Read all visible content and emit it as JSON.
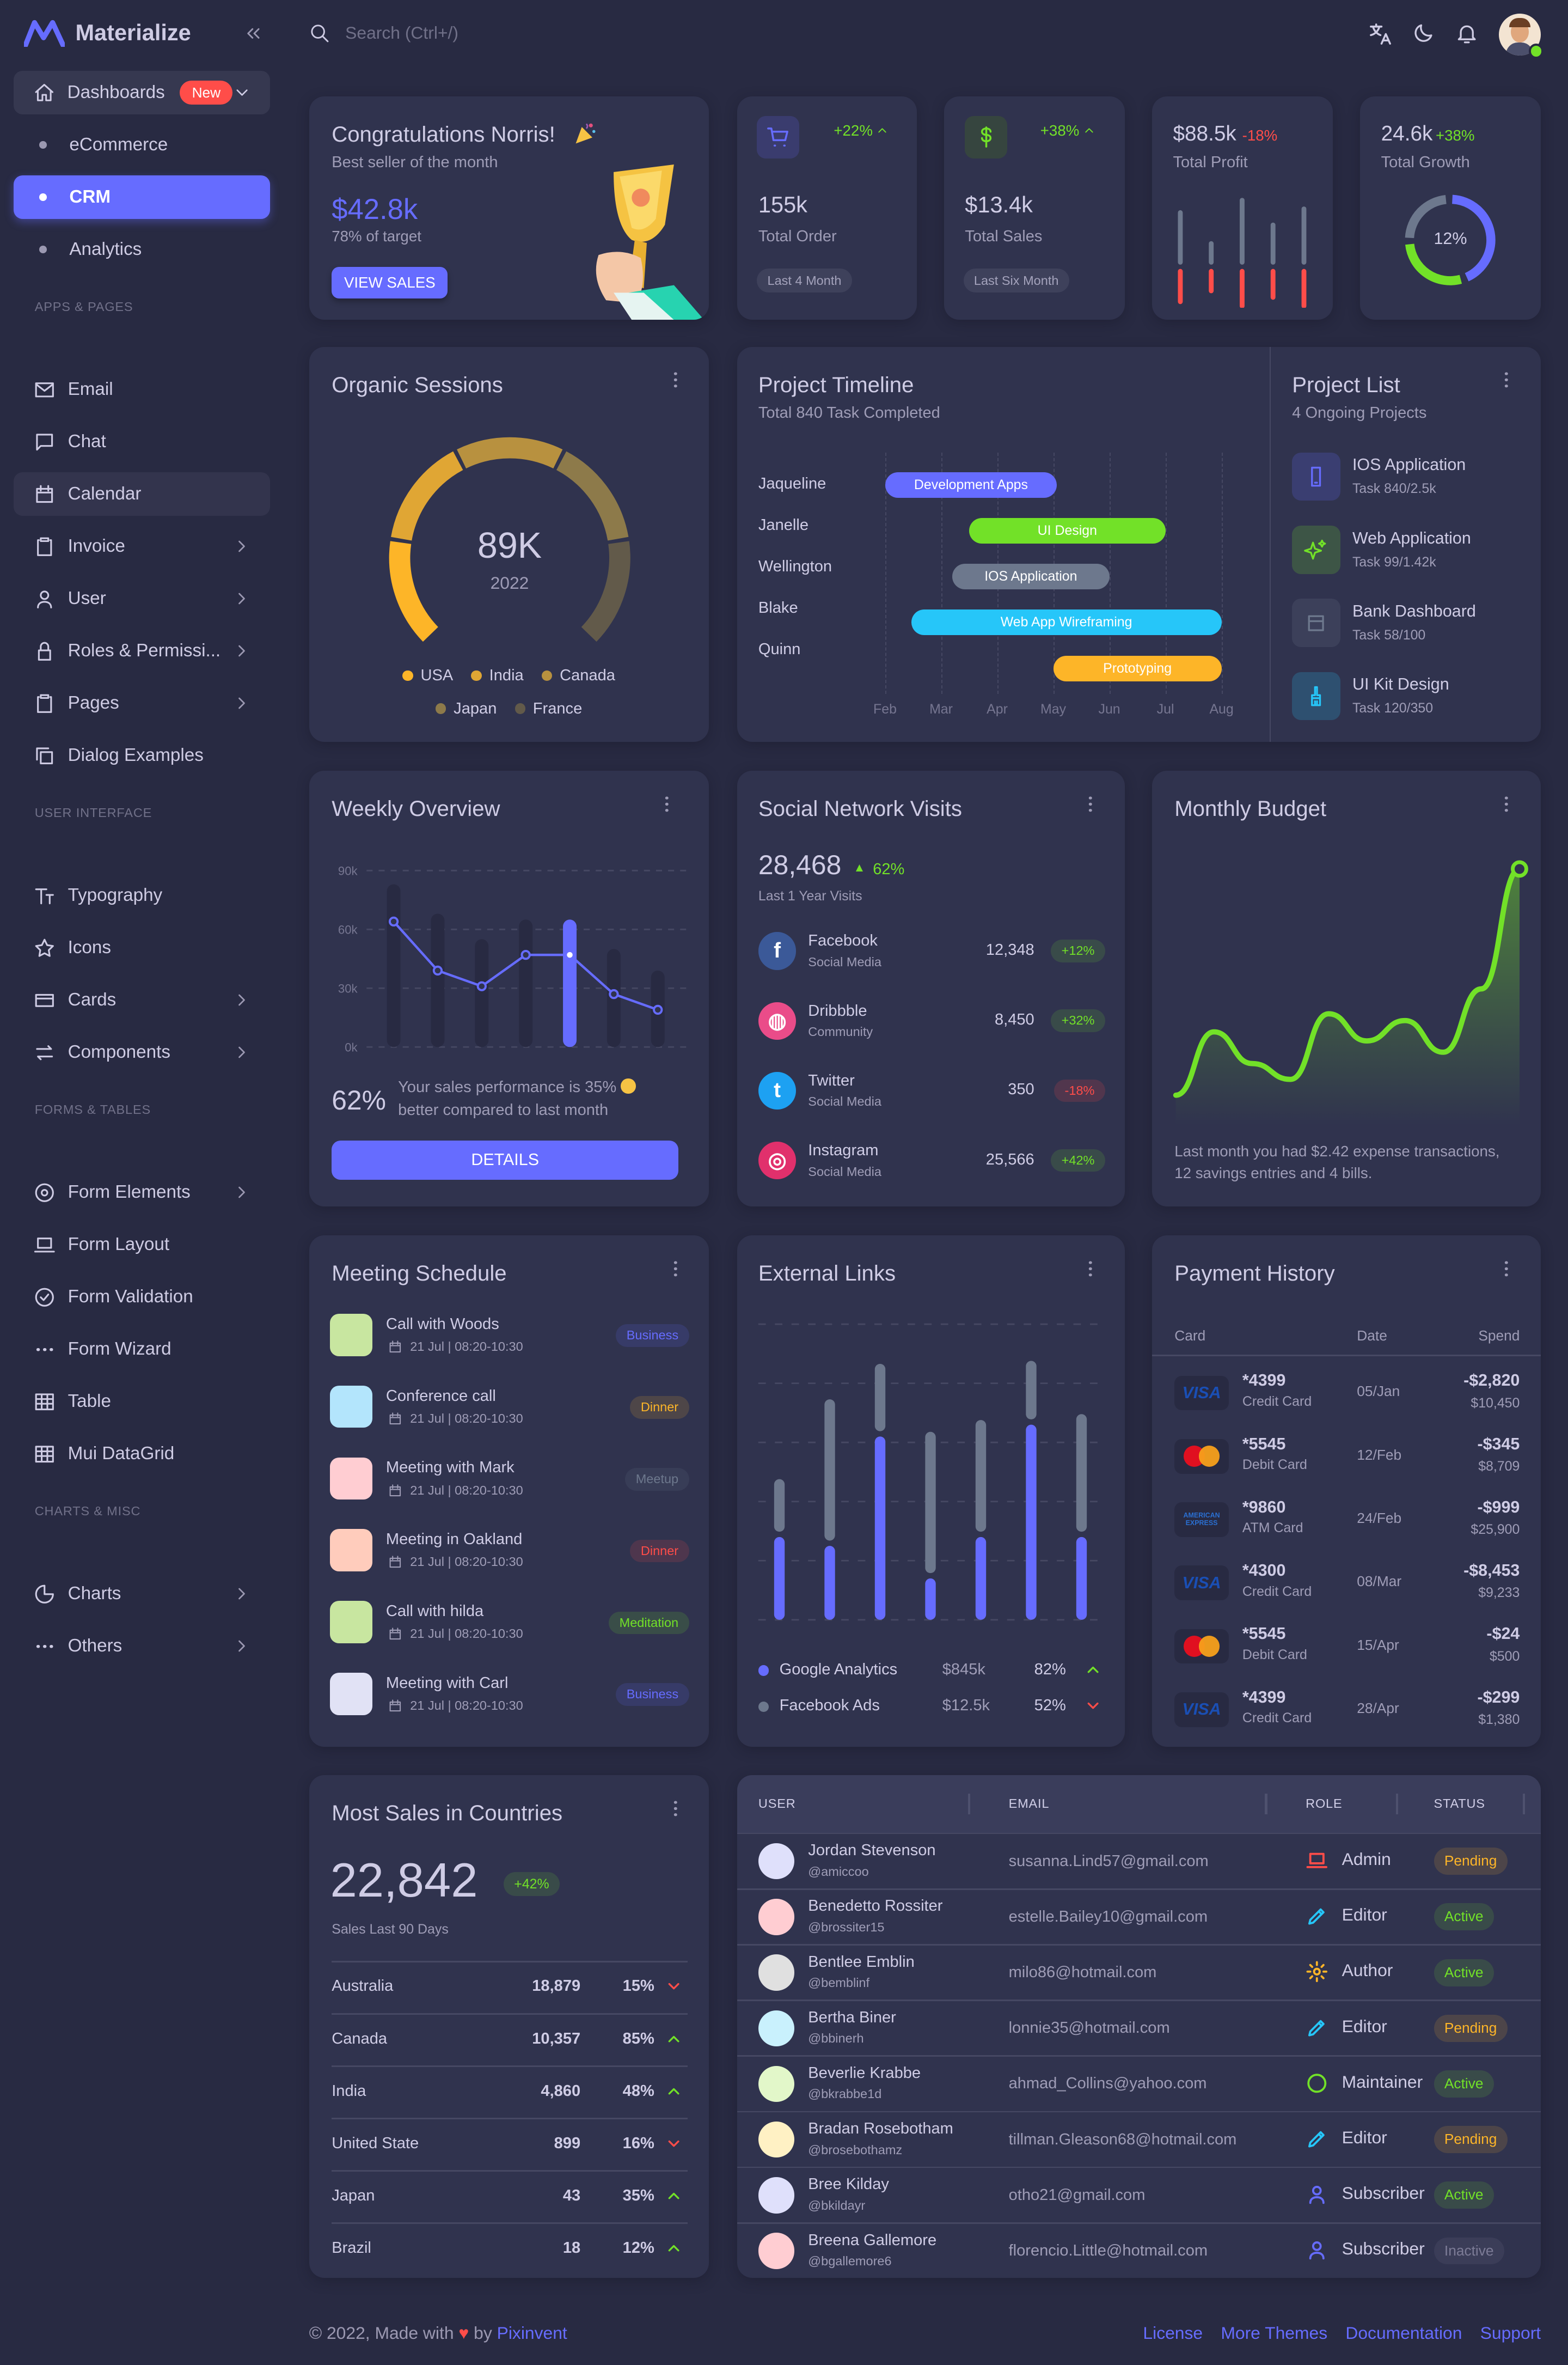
{
  "brand": {
    "name": "Materialize",
    "color": "#666cff"
  },
  "colors": {
    "primary": "#666cff",
    "success": "#72e128",
    "error": "#ff4d49",
    "warning": "#fdb528",
    "info": "#26c6f9",
    "secondary": "#6d788d",
    "card": "#30334e",
    "background": "#282a42"
  },
  "header": {
    "search_placeholder": "Search (Ctrl+/)",
    "icons": [
      "translate-icon",
      "moon-icon",
      "bell-icon"
    ]
  },
  "sidebar": {
    "dashboards": {
      "label": "Dashboards",
      "badge": "New",
      "icon": "home",
      "children": [
        {
          "label": "eCommerce",
          "active": false
        },
        {
          "label": "CRM",
          "active": true
        },
        {
          "label": "Analytics",
          "active": false
        }
      ]
    },
    "sections": [
      {
        "title": "APPS & PAGES",
        "items": [
          {
            "label": "Email",
            "icon": "mail",
            "chevron": false
          },
          {
            "label": "Chat",
            "icon": "chat",
            "chevron": false
          },
          {
            "label": "Calendar",
            "icon": "calendar",
            "chevron": false,
            "hover": true
          },
          {
            "label": "Invoice",
            "icon": "clipboard",
            "chevron": true
          },
          {
            "label": "User",
            "icon": "user",
            "chevron": true
          },
          {
            "label": "Roles & Permissi...",
            "icon": "lock",
            "chevron": true
          },
          {
            "label": "Pages",
            "icon": "clipboard",
            "chevron": true
          },
          {
            "label": "Dialog Examples",
            "icon": "copy",
            "chevron": false
          }
        ]
      },
      {
        "title": "USER INTERFACE",
        "items": [
          {
            "label": "Typography",
            "icon": "typo",
            "chevron": false
          },
          {
            "label": "Icons",
            "icon": "star",
            "chevron": false
          },
          {
            "label": "Cards",
            "icon": "cards",
            "chevron": true
          },
          {
            "label": "Components",
            "icon": "swap",
            "chevron": true
          }
        ]
      },
      {
        "title": "FORMS & TABLES",
        "items": [
          {
            "label": "Form Elements",
            "icon": "radio",
            "chevron": true
          },
          {
            "label": "Form Layout",
            "icon": "laptop",
            "chevron": false
          },
          {
            "label": "Form Validation",
            "icon": "check",
            "chevron": false
          },
          {
            "label": "Form Wizard",
            "icon": "dots",
            "chevron": false
          },
          {
            "label": "Table",
            "icon": "table",
            "chevron": false
          },
          {
            "label": "Mui DataGrid",
            "icon": "table",
            "chevron": false
          }
        ]
      },
      {
        "title": "CHARTS & MISC",
        "items": [
          {
            "label": "Charts",
            "icon": "pie",
            "chevron": true
          },
          {
            "label": "Others",
            "icon": "dots",
            "chevron": true
          }
        ]
      }
    ]
  },
  "congrats": {
    "title": "Congratulations Norris!",
    "subtitle": "Best seller of the month",
    "amount": "$42.8k",
    "target": "78% of target",
    "button": "VIEW SALES"
  },
  "order": {
    "change": "+22%",
    "value": "155k",
    "label": "Total Order",
    "chip": "Last 4 Month",
    "icon": "cart"
  },
  "sales": {
    "change": "+38%",
    "value": "$13.4k",
    "label": "Total Sales",
    "chip": "Last Six Month",
    "icon": "dollar"
  },
  "profit": {
    "value": "$88.5k",
    "change": "-18%",
    "label": "Total Profit",
    "positive": [
      45,
      20,
      55,
      35,
      48
    ],
    "negative": [
      -28,
      -18,
      -32,
      -24,
      -32
    ]
  },
  "growth": {
    "value": "24.6k",
    "change": "+38%",
    "label": "Total Growth",
    "center": "12%",
    "series": [
      45,
      30,
      25
    ],
    "series_colors": [
      "#666cff",
      "#72e128",
      "#6d788d"
    ]
  },
  "organic": {
    "title": "Organic Sessions",
    "value": "89K",
    "year": "2022",
    "legend": [
      {
        "name": "USA",
        "color": "#fdb528"
      },
      {
        "name": "India",
        "color": "#e0a634"
      },
      {
        "name": "Canada",
        "color": "#b8913f"
      },
      {
        "name": "Japan",
        "color": "#8d7a4a"
      },
      {
        "name": "France",
        "color": "#625a4a"
      }
    ]
  },
  "timeline": {
    "title": "Project Timeline",
    "subtitle": "Total 840 Task Completed",
    "months": [
      "Feb",
      "Mar",
      "Apr",
      "May",
      "Jun",
      "Jul",
      "Aug"
    ],
    "rows": [
      {
        "name": "Jaqueline",
        "task": "Development Apps",
        "start": "Feb 01",
        "end": "May 03",
        "color": "#666cff"
      },
      {
        "name": "Janelle",
        "task": "UI Design",
        "start": "Mar 16",
        "end": "Jul 01",
        "color": "#72e128"
      },
      {
        "name": "Wellington",
        "task": "IOS Application",
        "start": "Mar 07",
        "end": "Jun 01",
        "color": "#6d788d"
      },
      {
        "name": "Blake",
        "task": "Web App Wireframing",
        "start": "Feb 15",
        "end": "Aug 01",
        "color": "#26c6f9"
      },
      {
        "name": "Quinn",
        "task": "Prototyping",
        "start": "May 01",
        "end": "Aug 01",
        "color": "#fdb528"
      }
    ]
  },
  "projects": {
    "title": "Project List",
    "subtitle": "4 Ongoing Projects",
    "items": [
      {
        "title": "IOS Application",
        "task": "Task 840/2.5k",
        "icon": "phone",
        "color": "#666cff"
      },
      {
        "title": "Web Application",
        "task": "Task 99/1.42k",
        "icon": "sparkle",
        "color": "#72e128"
      },
      {
        "title": "Bank Dashboard",
        "task": "Task 58/100",
        "icon": "bank",
        "color": "#6d788d"
      },
      {
        "title": "UI Kit Design",
        "task": "Task 120/350",
        "icon": "brush",
        "color": "#26c6f9"
      }
    ]
  },
  "weekly": {
    "title": "Weekly Overview",
    "percent": "62%",
    "text1": "Your sales performance is 35%",
    "text2": "better compared to last month",
    "button": "DETAILS",
    "y_ticks": [
      "90k",
      "60k",
      "30k",
      "0k"
    ],
    "ylim": [
      0,
      90
    ],
    "bars": [
      83,
      68,
      55,
      65,
      65,
      50,
      39
    ],
    "line": [
      64,
      39,
      31,
      47,
      47,
      27,
      19
    ],
    "highlight_index": 4
  },
  "social": {
    "title": "Social Network Visits",
    "total": "28,468",
    "change": "62%",
    "caption": "Last 1 Year Visits",
    "items": [
      {
        "name": "Facebook",
        "sub": "Social Media",
        "value": "12,348",
        "change": "+12%",
        "up": true,
        "icon": "facebook",
        "color": "#3b5998"
      },
      {
        "name": "Dribbble",
        "sub": "Community",
        "value": "8,450",
        "change": "+32%",
        "up": true,
        "icon": "dribbble",
        "color": "#ea4c89"
      },
      {
        "name": "Twitter",
        "sub": "Social Media",
        "value": "350",
        "change": "-18%",
        "up": false,
        "icon": "twitter",
        "color": "#1da1f2"
      },
      {
        "name": "Instagram",
        "sub": "Social Media",
        "value": "25,566",
        "change": "+42%",
        "up": true,
        "icon": "instagram",
        "color": "#e1306c"
      }
    ]
  },
  "budget": {
    "title": "Monthly Budget",
    "text": "Last month you had $2.42 expense transactions, 12 savings entries and 4 bills.",
    "series": [
      0,
      28,
      14,
      7,
      36,
      24,
      33,
      19,
      47,
      100
    ]
  },
  "meetings": {
    "title": "Meeting Schedule",
    "items": [
      {
        "title": "Call with Woods",
        "date": "21 Jul | 08:20-10:30",
        "tag": "Business",
        "color": "#666cff",
        "avatar": "#c8e6a0"
      },
      {
        "title": "Conference call",
        "date": "21 Jul | 08:20-10:30",
        "tag": "Dinner",
        "color": "#fdb528",
        "avatar": "#b3e5fc"
      },
      {
        "title": "Meeting with Mark",
        "date": "21 Jul | 08:20-10:30",
        "tag": "Meetup",
        "color": "#6d788d",
        "avatar": "#ffcdd2"
      },
      {
        "title": "Meeting in Oakland",
        "date": "21 Jul | 08:20-10:30",
        "tag": "Dinner",
        "color": "#ff4d49",
        "avatar": "#ffccbc"
      },
      {
        "title": "Call with hilda",
        "date": "21 Jul | 08:20-10:30",
        "tag": "Meditation",
        "color": "#72e128",
        "avatar": "#c8e6a0"
      },
      {
        "title": "Meeting with Carl",
        "date": "21 Jul | 08:20-10:30",
        "tag": "Business",
        "color": "#666cff",
        "avatar": "#e1e2f5"
      }
    ]
  },
  "external": {
    "title": "External Links",
    "ylim": [
      0,
      50
    ],
    "series": [
      {
        "name": "Google Analytics",
        "values": [
          14,
          12.5,
          31,
          7,
          14,
          33,
          14
        ],
        "color": "#666cff"
      },
      {
        "name": "Facebook Ads",
        "values": [
          8,
          23,
          10.5,
          23,
          18,
          9,
          19
        ],
        "color": "#6d788d"
      }
    ],
    "legend": [
      {
        "name": "Google Analytics",
        "amount": "$845k",
        "percent": "82%",
        "up": true,
        "color": "#666cff"
      },
      {
        "name": "Facebook Ads",
        "amount": "$12.5k",
        "percent": "52%",
        "up": false,
        "color": "#6d788d"
      }
    ]
  },
  "payments": {
    "title": "Payment History",
    "columns": [
      "Card",
      "Date",
      "Spend"
    ],
    "rows": [
      {
        "brand": "VISA",
        "number": "*4399",
        "type": "Credit Card",
        "date": "05/Jan",
        "spend": "-$2,820",
        "balance": "$10,450"
      },
      {
        "brand": "MasterCard",
        "number": "*5545",
        "type": "Debit Card",
        "date": "12/Feb",
        "spend": "-$345",
        "balance": "$8,709"
      },
      {
        "brand": "AMERICAN EXPRESS",
        "number": "*9860",
        "type": "ATM Card",
        "date": "24/Feb",
        "spend": "-$999",
        "balance": "$25,900"
      },
      {
        "brand": "VISA",
        "number": "*4300",
        "type": "Credit Card",
        "date": "08/Mar",
        "spend": "-$8,453",
        "balance": "$9,233"
      },
      {
        "brand": "MasterCard",
        "number": "*5545",
        "type": "Debit Card",
        "date": "15/Apr",
        "spend": "-$24",
        "balance": "$500"
      },
      {
        "brand": "VISA",
        "number": "*4399",
        "type": "Credit Card",
        "date": "28/Apr",
        "spend": "-$299",
        "balance": "$1,380"
      }
    ]
  },
  "countries": {
    "title": "Most Sales in Countries",
    "total": "22,842",
    "change": "+42%",
    "caption": "Sales Last 90 Days",
    "rows": [
      {
        "name": "Australia",
        "value": "18,879",
        "percent": "15%",
        "up": false
      },
      {
        "name": "Canada",
        "value": "10,357",
        "percent": "85%",
        "up": true
      },
      {
        "name": "India",
        "value": "4,860",
        "percent": "48%",
        "up": true
      },
      {
        "name": "United State",
        "value": "899",
        "percent": "16%",
        "up": false
      },
      {
        "name": "Japan",
        "value": "43",
        "percent": "35%",
        "up": true
      },
      {
        "name": "Brazil",
        "value": "18",
        "percent": "12%",
        "up": true
      }
    ]
  },
  "users": {
    "columns": [
      "USER",
      "EMAIL",
      "ROLE",
      "STATUS"
    ],
    "rows": [
      {
        "name": "Jordan Stevenson",
        "handle": "@amiccoo",
        "email": "susanna.Lind57@gmail.com",
        "role": "Admin",
        "role_icon": "laptop",
        "role_color": "#ff4d49",
        "status": "Pending",
        "avatar": "#dfe0fb"
      },
      {
        "name": "Benedetto Rossiter",
        "handle": "@brossiter15",
        "email": "estelle.Bailey10@gmail.com",
        "role": "Editor",
        "role_icon": "pencil",
        "role_color": "#26c6f9",
        "status": "Active",
        "avatar": "#ffcdd2"
      },
      {
        "name": "Bentlee Emblin",
        "handle": "@bemblinf",
        "email": "milo86@hotmail.com",
        "role": "Author",
        "role_icon": "gear",
        "role_color": "#fdb528",
        "status": "Active",
        "avatar": "#e0e0e0"
      },
      {
        "name": "Bertha Biner",
        "handle": "@bbinerh",
        "email": "lonnie35@hotmail.com",
        "role": "Editor",
        "role_icon": "pencil",
        "role_color": "#26c6f9",
        "status": "Pending",
        "avatar": "#c9f1fd"
      },
      {
        "name": "Beverlie Krabbe",
        "handle": "@bkrabbe1d",
        "email": "ahmad_Collins@yahoo.com",
        "role": "Maintainer",
        "role_icon": "donut",
        "role_color": "#72e128",
        "status": "Active",
        "avatar": "#e2f7c9"
      },
      {
        "name": "Bradan Rosebotham",
        "handle": "@brosebothamz",
        "email": "tillman.Gleason68@hotmail.com",
        "role": "Editor",
        "role_icon": "pencil",
        "role_color": "#26c6f9",
        "status": "Pending",
        "avatar": "#fff1c4"
      },
      {
        "name": "Bree Kilday",
        "handle": "@bkildayr",
        "email": "otho21@gmail.com",
        "role": "Subscriber",
        "role_icon": "user",
        "role_color": "#666cff",
        "status": "Active",
        "avatar": "#dfe0fb"
      },
      {
        "name": "Breena Gallemore",
        "handle": "@bgallemore6",
        "email": "florencio.Little@hotmail.com",
        "role": "Subscriber",
        "role_icon": "user",
        "role_color": "#666cff",
        "status": "Inactive",
        "avatar": "#ffcdd2"
      }
    ]
  },
  "footer": {
    "copyright": "© 2022, Made with",
    "by": "by",
    "author": "Pixinvent",
    "links": [
      "License",
      "More Themes",
      "Documentation",
      "Support"
    ]
  }
}
